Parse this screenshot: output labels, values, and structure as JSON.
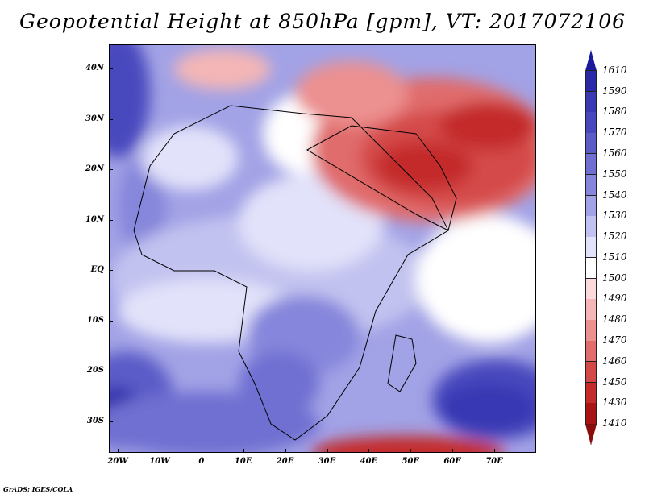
{
  "title": "Geopotential Height at 850hPa [gpm], VT: 2017072106",
  "footer": "GrADS: IGES/COLA",
  "lat_labels": [
    "40N",
    "30N",
    "20N",
    "10N",
    "EQ",
    "10S",
    "20S",
    "30S"
  ],
  "lon_labels": [
    "20W",
    "10W",
    "0",
    "10E",
    "20E",
    "30E",
    "40E",
    "50E",
    "60E",
    "70E"
  ],
  "colorbar": {
    "labels": [
      "1610",
      "1590",
      "1580",
      "1570",
      "1560",
      "1550",
      "1540",
      "1530",
      "1520",
      "1510",
      "1500",
      "1490",
      "1480",
      "1470",
      "1460",
      "1450",
      "1430",
      "1410"
    ],
    "colors": [
      "#1a1a9e",
      "#2a2aa8",
      "#3939b4",
      "#4848be",
      "#5c5cc8",
      "#7070d2",
      "#8686dc",
      "#a2a2e6",
      "#c2c2f0",
      "#e2e2fa",
      "#ffffff",
      "#fadada",
      "#f4b6b6",
      "#ec9090",
      "#e06c6c",
      "#d44848",
      "#c42c2c",
      "#a81414",
      "#8a0c0c"
    ]
  }
}
